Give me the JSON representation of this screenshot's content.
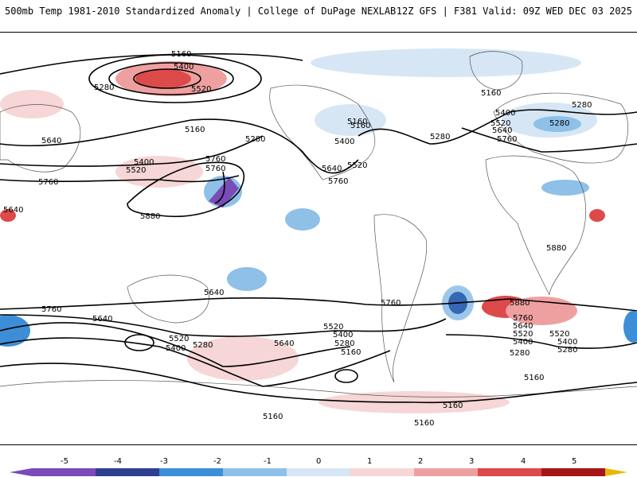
{
  "header": {
    "left_title": "500mb Temp 1981-2010 Standardized Anomaly | College of DuPage NEXLAB",
    "right_title": "12Z GFS | F381 Valid: 09Z WED DEC 03 2025"
  },
  "map": {
    "contour_labels": [
      "5160",
      "5400",
      "5280",
      "5520",
      "5160",
      "5280",
      "5640",
      "5400",
      "5520",
      "5760",
      "5880",
      "5760",
      "5160",
      "5400",
      "5280",
      "5640",
      "5520",
      "5760",
      "5160",
      "5280",
      "5400",
      "5520",
      "5640",
      "5760",
      "5280",
      "5880",
      "5760",
      "5640",
      "5520",
      "5400",
      "5280",
      "5160",
      "5640",
      "5760",
      "5640",
      "5520",
      "5400",
      "5280",
      "5760",
      "5520",
      "5400",
      "5280",
      "5160",
      "5640",
      "5880",
      "5760",
      "5640",
      "5520",
      "5400",
      "5280",
      "5160",
      "5160",
      "5160",
      "5160"
    ],
    "anomaly_colors": {
      "neg5": "#7b4bb8",
      "neg4": "#2f3f8f",
      "neg3": "#3c8fd6",
      "neg2": "#8ec0e8",
      "neg1": "#d6e6f4",
      "pos1": "#f6d6d6",
      "pos2": "#eea0a0",
      "pos3": "#dd4a4a",
      "pos4": "#a51616",
      "pos5": "#e8b800"
    }
  },
  "colorbar": {
    "ticks": [
      "-5",
      "-4",
      "-3",
      "-2",
      "-1",
      "0",
      "1",
      "2",
      "3",
      "4",
      "5"
    ]
  }
}
